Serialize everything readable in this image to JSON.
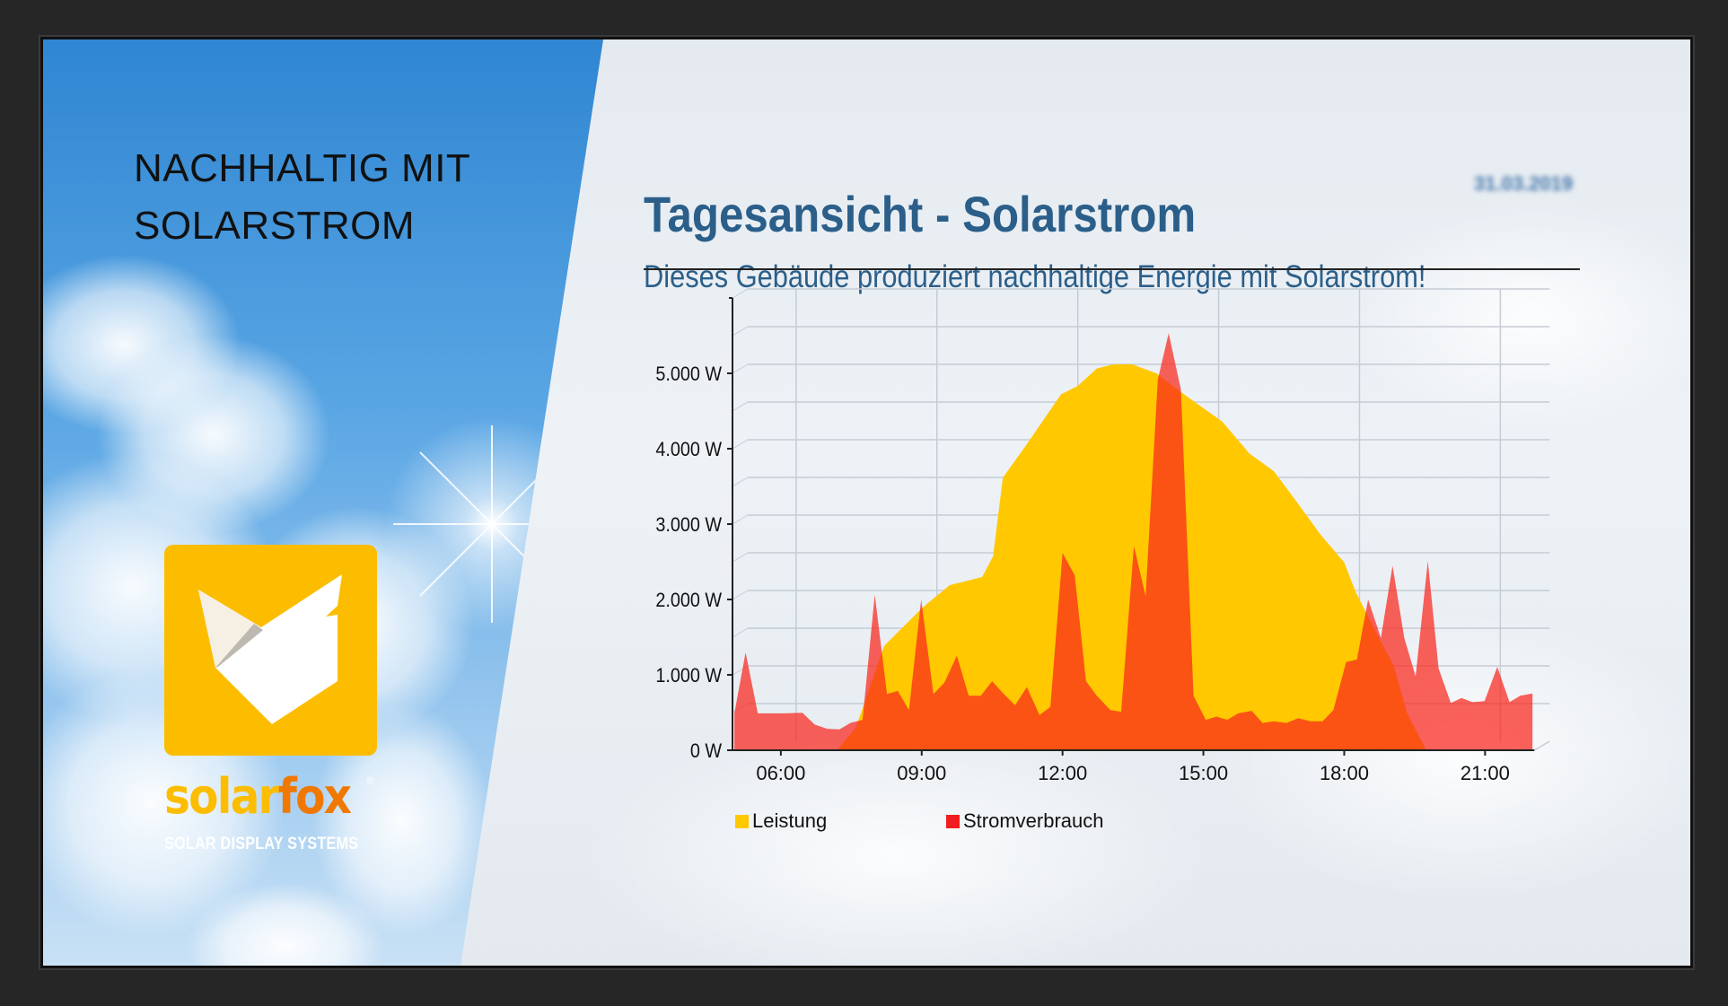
{
  "left_panel": {
    "headline_line1": "NACHHALTIG MIT",
    "headline_line2": "SOLARSTROM",
    "brand_part1": "solar",
    "brand_part2": "fox",
    "brand_registered": "®",
    "brand_tagline": "SOLAR DISPLAY SYSTEMS"
  },
  "header": {
    "title": "Tagesansicht - Solarstrom",
    "date": "31.03.2019",
    "subtitle": "Dieses Gebäude produziert nachhaltige Energie mit Solarstrom!"
  },
  "colors": {
    "title": "#2b5f8a",
    "leistung": "#ffc800",
    "stromverbrauch": "#f01e1e",
    "brand_yellow": "#fcbd00",
    "brand_orange": "#f07800"
  },
  "chart_data": {
    "type": "area",
    "title": "Tagesansicht - Solarstrom",
    "xlabel": "",
    "ylabel": "",
    "xlim": [
      4.97,
      22.05
    ],
    "ylim": [
      0,
      6000
    ],
    "x_ticks": [
      6,
      9,
      12,
      15,
      18,
      21
    ],
    "x_tick_labels": [
      "06:00",
      "09:00",
      "12:00",
      "15:00",
      "18:00",
      "21:00"
    ],
    "y_ticks": [
      0,
      1000,
      2000,
      3000,
      4000,
      5000
    ],
    "y_tick_labels": [
      "0 W",
      "1.000 W",
      "2.000 W",
      "3.000 W",
      "4.000 W",
      "5.000 W"
    ],
    "grid": true,
    "legend_position": "bottom-left",
    "series": [
      {
        "name": "Leistung",
        "color": "#ffc800",
        "points": [
          [
            7.2,
            0
          ],
          [
            7.6,
            300
          ],
          [
            8.2,
            1383
          ],
          [
            9.02,
            1894
          ],
          [
            9.6,
            2191
          ],
          [
            10.29,
            2298
          ],
          [
            10.52,
            2574
          ],
          [
            10.73,
            3617
          ],
          [
            11.22,
            4043
          ],
          [
            11.97,
            4723
          ],
          [
            12.32,
            4830
          ],
          [
            12.73,
            5064
          ],
          [
            13.08,
            5119
          ],
          [
            13.48,
            5119
          ],
          [
            14.0,
            5000
          ],
          [
            14.35,
            4830
          ],
          [
            14.82,
            4617
          ],
          [
            15.4,
            4362
          ],
          [
            15.98,
            3936
          ],
          [
            16.5,
            3702
          ],
          [
            16.96,
            3319
          ],
          [
            17.48,
            2872
          ],
          [
            18.0,
            2489
          ],
          [
            18.24,
            2106
          ],
          [
            18.65,
            1596
          ],
          [
            19.05,
            1128
          ],
          [
            19.34,
            489
          ],
          [
            19.75,
            0
          ]
        ]
      },
      {
        "name": "Stromverbrauch",
        "color": "#f01e1e",
        "points": [
          [
            5.01,
            489
          ],
          [
            5.25,
            1298
          ],
          [
            5.51,
            489
          ],
          [
            6.06,
            489
          ],
          [
            6.46,
            498
          ],
          [
            6.72,
            340
          ],
          [
            6.99,
            285
          ],
          [
            7.25,
            277
          ],
          [
            7.48,
            362
          ],
          [
            7.74,
            404
          ],
          [
            8.0,
            2064
          ],
          [
            8.26,
            745
          ],
          [
            8.49,
            787
          ],
          [
            8.73,
            532
          ],
          [
            8.99,
            2000
          ],
          [
            9.25,
            745
          ],
          [
            9.48,
            894
          ],
          [
            9.75,
            1255
          ],
          [
            10.0,
            723
          ],
          [
            10.26,
            723
          ],
          [
            10.5,
            915
          ],
          [
            10.75,
            745
          ],
          [
            10.99,
            596
          ],
          [
            11.24,
            838
          ],
          [
            11.51,
            468
          ],
          [
            11.74,
            574
          ],
          [
            12.0,
            2617
          ],
          [
            12.26,
            2319
          ],
          [
            12.5,
            915
          ],
          [
            12.73,
            723
          ],
          [
            13.02,
            532
          ],
          [
            13.25,
            511
          ],
          [
            13.52,
            2711
          ],
          [
            13.77,
            2043
          ],
          [
            14.03,
            4915
          ],
          [
            14.26,
            5532
          ],
          [
            14.52,
            4787
          ],
          [
            14.79,
            723
          ],
          [
            15.05,
            404
          ],
          [
            15.28,
            447
          ],
          [
            15.51,
            404
          ],
          [
            15.74,
            489
          ],
          [
            16.03,
            523
          ],
          [
            16.26,
            362
          ],
          [
            16.5,
            383
          ],
          [
            16.77,
            362
          ],
          [
            17.02,
            426
          ],
          [
            17.28,
            383
          ],
          [
            17.54,
            383
          ],
          [
            17.77,
            532
          ],
          [
            18.04,
            1170
          ],
          [
            18.27,
            1204
          ],
          [
            18.51,
            2000
          ],
          [
            18.78,
            1489
          ],
          [
            19.03,
            2447
          ],
          [
            19.28,
            1489
          ],
          [
            19.52,
            979
          ],
          [
            19.78,
            2511
          ],
          [
            20.01,
            1085
          ],
          [
            20.27,
            626
          ],
          [
            20.5,
            694
          ],
          [
            20.73,
            638
          ],
          [
            20.99,
            651
          ],
          [
            21.26,
            1106
          ],
          [
            21.52,
            638
          ],
          [
            21.75,
            723
          ],
          [
            22.01,
            753
          ]
        ]
      }
    ]
  }
}
